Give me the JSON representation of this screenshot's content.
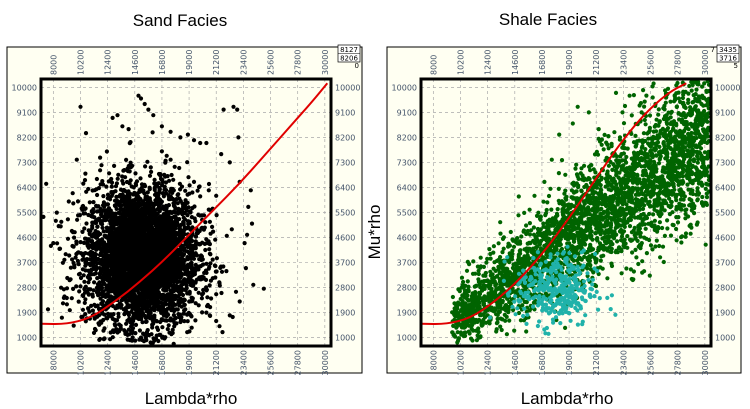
{
  "colors": {
    "sand_points": "#000000",
    "shale_points": "#006400",
    "shale_highlight": "#20b2aa",
    "trend_curve": "#e00000",
    "plot_bg": "#fffff0",
    "grid": "#a9a9a9",
    "tick_text": "#44546a"
  },
  "chart_data": [
    {
      "type": "scatter",
      "title": "Sand Facies",
      "xlabel": "Lambda*rho",
      "ylabel": "",
      "xlim": [
        7000,
        30500
      ],
      "ylim": [
        700,
        10300
      ],
      "x_ticks": [
        "8000",
        "10200",
        "12400",
        "14600",
        "16800",
        "19000",
        "21200",
        "23400",
        "25600",
        "27800",
        "30000"
      ],
      "y_ticks": [
        "10000",
        "9100",
        "8200",
        "7300",
        "6400",
        "5500",
        "4600",
        "3700",
        "2800",
        "1900",
        "1000"
      ],
      "corner_values": [
        "8127",
        "8206",
        "0"
      ],
      "grid": true,
      "series": [
        {
          "type": "scatter",
          "color": "#000000",
          "cluster": {
            "x_mean": 15200,
            "x_std": 2300,
            "y_mean": 3900,
            "y_std": 1250,
            "count": 4200
          },
          "outliers": [
            [
              10200,
              9300
            ],
            [
              12800,
              8900
            ],
            [
              13200,
              9000
            ],
            [
              13600,
              8600
            ],
            [
              14900,
              9700
            ],
            [
              15100,
              9600
            ],
            [
              15400,
              9400
            ],
            [
              15700,
              9200
            ],
            [
              16100,
              9000
            ],
            [
              14100,
              8500
            ],
            [
              16800,
              8600
            ],
            [
              17500,
              8400
            ],
            [
              18300,
              8200
            ],
            [
              18900,
              8300
            ],
            [
              19400,
              8100
            ],
            [
              19900,
              8000
            ],
            [
              20400,
              8000
            ],
            [
              21800,
              9200
            ],
            [
              22600,
              9300
            ],
            [
              22900,
              9200
            ],
            [
              23000,
              8200
            ],
            [
              21600,
              7600
            ],
            [
              22300,
              7300
            ],
            [
              23100,
              6600
            ],
            [
              24000,
              6300
            ],
            [
              23800,
              5700
            ],
            [
              24100,
              5100
            ],
            [
              23700,
              4700
            ],
            [
              23500,
              4400
            ],
            [
              23600,
              3500
            ],
            [
              24200,
              2900
            ],
            [
              23100,
              2300
            ],
            [
              22300,
              1800
            ],
            [
              21200,
              1600
            ],
            [
              20400,
              1900
            ],
            [
              14300,
              1400
            ],
            [
              13900,
              1500
            ],
            [
              8200,
              5200
            ],
            [
              8000,
              4400
            ],
            [
              8600,
              5000
            ],
            [
              9000,
              4000
            ],
            [
              9400,
              3100
            ],
            [
              9100,
              2200
            ],
            [
              10400,
              2000
            ],
            [
              11200,
              1800
            ],
            [
              8900,
              3800
            ],
            [
              7800,
              4300
            ],
            [
              9900,
              7400
            ],
            [
              10600,
              6900
            ],
            [
              11900,
              7200
            ],
            [
              16800,
              7700
            ],
            [
              17500,
              7400
            ],
            [
              18200,
              7100
            ],
            [
              19400,
              6600
            ],
            [
              20600,
              6300
            ],
            [
              21200,
              6100
            ]
          ]
        }
      ],
      "curve": {
        "color": "#e00000",
        "points": [
          [
            7000,
            1500
          ],
          [
            9000,
            1480
          ],
          [
            11000,
            1700
          ],
          [
            13000,
            2300
          ],
          [
            15000,
            3000
          ],
          [
            17000,
            3800
          ],
          [
            19000,
            4700
          ],
          [
            21000,
            5600
          ],
          [
            23000,
            6500
          ],
          [
            25000,
            7500
          ],
          [
            27000,
            8500
          ],
          [
            29000,
            9500
          ],
          [
            30200,
            10150
          ]
        ]
      }
    },
    {
      "type": "scatter",
      "title": "Shale Facies",
      "xlabel": "Lambda*rho",
      "ylabel": "Mu*rho",
      "xlim": [
        7000,
        30500
      ],
      "ylim": [
        700,
        10300
      ],
      "x_ticks": [
        "8000",
        "10200",
        "12400",
        "14600",
        "16800",
        "19000",
        "21200",
        "23400",
        "25600",
        "27800",
        "30000"
      ],
      "y_ticks": [
        "10000",
        "9100",
        "8200",
        "7300",
        "6400",
        "5500",
        "4600",
        "3700",
        "2800",
        "1900",
        "1000"
      ],
      "corner_values": [
        "7",
        "3435",
        "3716",
        "5"
      ],
      "grid": true,
      "series": [
        {
          "type": "scatter",
          "color": "#006400",
          "band": {
            "x_start": 9500,
            "x_end": 30500,
            "y_start": 1500,
            "slope": 0.33,
            "spread": 1100,
            "count": 3200
          },
          "outliers": [
            [
              19700,
              9300
            ],
            [
              20600,
              9100
            ],
            [
              22800,
              9800
            ],
            [
              23900,
              9700
            ],
            [
              25000,
              9900
            ],
            [
              26000,
              9400
            ],
            [
              27900,
              9600
            ],
            [
              29400,
              9500
            ],
            [
              18200,
              8300
            ],
            [
              19300,
              8700
            ],
            [
              21400,
              8500
            ],
            [
              24800,
              8800
            ],
            [
              26900,
              9000
            ],
            [
              29800,
              8100
            ],
            [
              17600,
              7400
            ],
            [
              16200,
              6100
            ],
            [
              14900,
              5400
            ],
            [
              15800,
              5600
            ],
            [
              17000,
              6600
            ],
            [
              13700,
              4200
            ],
            [
              12300,
              3700
            ]
          ]
        },
        {
          "type": "scatter",
          "color": "#20b2aa",
          "cluster": {
            "x_mean": 17900,
            "x_std": 1600,
            "y_mean": 2700,
            "y_std": 650,
            "count": 360
          }
        }
      ],
      "curve": {
        "color": "#e00000",
        "points": [
          [
            7000,
            1500
          ],
          [
            9000,
            1480
          ],
          [
            11000,
            1700
          ],
          [
            13000,
            2300
          ],
          [
            15000,
            3100
          ],
          [
            17000,
            4100
          ],
          [
            19000,
            5300
          ],
          [
            21000,
            6600
          ],
          [
            23000,
            7900
          ],
          [
            25000,
            9000
          ],
          [
            27000,
            9800
          ],
          [
            28500,
            10150
          ]
        ]
      }
    }
  ]
}
